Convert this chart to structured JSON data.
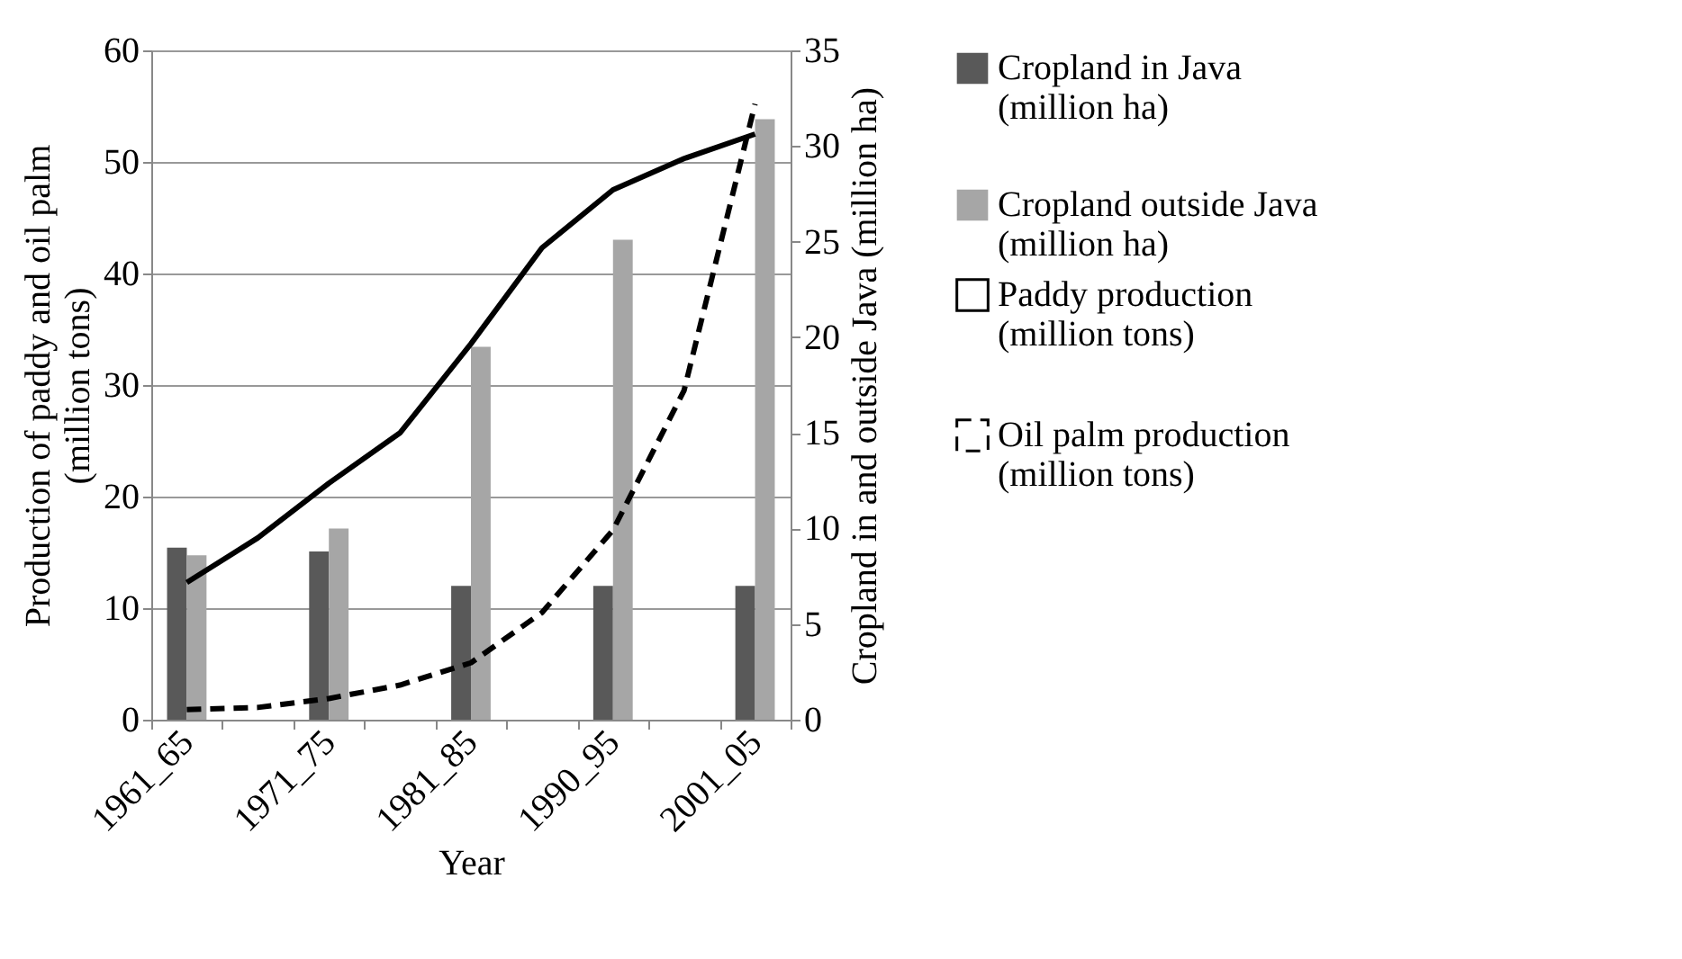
{
  "chart_data": {
    "type": "bar",
    "categories": [
      "1961_65",
      null,
      "1971_75",
      null,
      "1981_85",
      null,
      "1990_95",
      null,
      "2001_05"
    ],
    "xlabel": "Year",
    "ylabel": "Production of paddy and oil palm (million tons)",
    "y2label": "Cropland in and outside Java (million ha)",
    "ylim": [
      0,
      60
    ],
    "yticks": [
      0,
      10,
      20,
      30,
      40,
      50,
      60
    ],
    "y2lim": [
      0,
      35
    ],
    "y2ticks": [
      0,
      5,
      10,
      15,
      20,
      25,
      30,
      35
    ],
    "grid": "y",
    "legend": "right",
    "series": [
      {
        "name": "Cropland in Java (million ha)",
        "axis": "y2",
        "color": "#595959",
        "values": [
          9.0,
          null,
          8.8,
          null,
          7.0,
          null,
          7.0,
          null,
          7.0
        ]
      },
      {
        "name": "Cropland outside Java (million ha)",
        "axis": "y2",
        "color": "#a6a6a6",
        "values": [
          8.6,
          null,
          10.0,
          null,
          19.5,
          null,
          25.1,
          null,
          31.4
        ]
      },
      {
        "name": "Paddy production (million tons)",
        "type": "line",
        "color": "#000000",
        "line_style": "solid",
        "values": [
          12.3,
          16.3,
          21.2,
          25.7,
          33.7,
          42.3,
          47.5,
          50.3,
          52.5
        ]
      },
      {
        "name": "Oil palm production (million tons)",
        "type": "line",
        "color": "#000000",
        "line_style": "dashed",
        "values": [
          0.9,
          1.1,
          1.9,
          3.1,
          5.1,
          9.6,
          17.0,
          29.5,
          55.2
        ]
      }
    ]
  }
}
